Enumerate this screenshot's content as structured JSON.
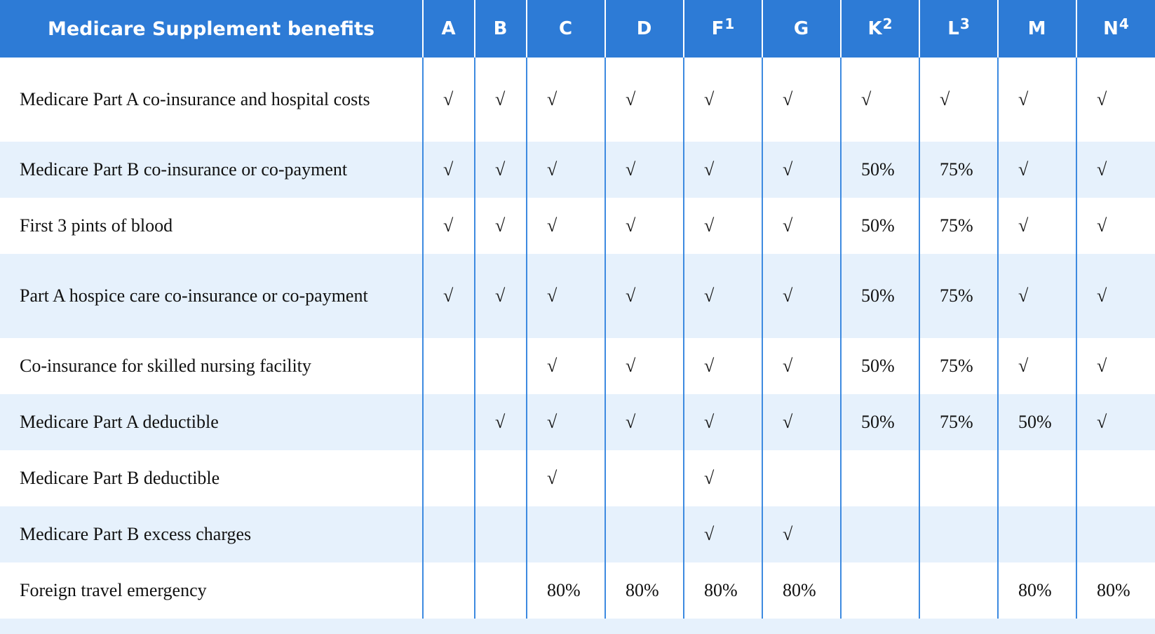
{
  "table": {
    "header_label": "Medicare Supplement benefits",
    "plans": [
      {
        "letter": "A",
        "footnote": ""
      },
      {
        "letter": "B",
        "footnote": ""
      },
      {
        "letter": "C",
        "footnote": ""
      },
      {
        "letter": "D",
        "footnote": ""
      },
      {
        "letter": "F",
        "footnote": "1"
      },
      {
        "letter": "G",
        "footnote": ""
      },
      {
        "letter": "K",
        "footnote": "2"
      },
      {
        "letter": "L",
        "footnote": "3"
      },
      {
        "letter": "M",
        "footnote": ""
      },
      {
        "letter": "N",
        "footnote": "4"
      }
    ],
    "rows": [
      {
        "benefit": "Medicare Part A co-insurance and hospital costs",
        "values": [
          "√",
          "√",
          "√",
          "√",
          "√",
          "√",
          "√",
          "√",
          "√",
          "√"
        ]
      },
      {
        "benefit": "Medicare Part B co-insurance or co-payment",
        "values": [
          "√",
          "√",
          "√",
          "√",
          "√",
          "√",
          "50%",
          "75%",
          "√",
          "√"
        ]
      },
      {
        "benefit": "First 3 pints of blood",
        "values": [
          "√",
          "√",
          "√",
          "√",
          "√",
          "√",
          "50%",
          "75%",
          "√",
          "√"
        ]
      },
      {
        "benefit": "Part A hospice care co-insurance or co-payment",
        "values": [
          "√",
          "√",
          "√",
          "√",
          "√",
          "√",
          "50%",
          "75%",
          "√",
          "√"
        ]
      },
      {
        "benefit": "Co-insurance for skilled nursing facility",
        "values": [
          "",
          "",
          "√",
          "√",
          "√",
          "√",
          "50%",
          "75%",
          "√",
          "√"
        ]
      },
      {
        "benefit": "Medicare Part A deductible",
        "values": [
          "",
          "√",
          "√",
          "√",
          "√",
          "√",
          "50%",
          "75%",
          "50%",
          "√"
        ]
      },
      {
        "benefit": "Medicare Part B deductible",
        "values": [
          "",
          "",
          "√",
          "",
          "√",
          "",
          "",
          "",
          "",
          ""
        ]
      },
      {
        "benefit": "Medicare Part B excess charges",
        "values": [
          "",
          "",
          "",
          "",
          "√",
          "√",
          "",
          "",
          "",
          ""
        ]
      },
      {
        "benefit": "Foreign travel emergency",
        "values": [
          "",
          "",
          "80%",
          "80%",
          "80%",
          "80%",
          "",
          "",
          "80%",
          "80%"
        ]
      }
    ]
  }
}
